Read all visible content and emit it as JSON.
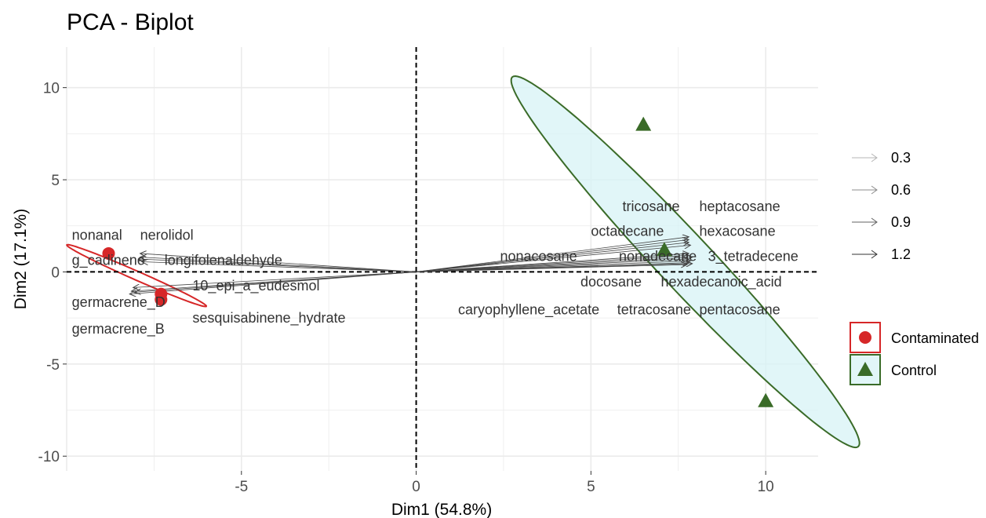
{
  "chart_data": {
    "type": "scatter",
    "title": "PCA - Biplot",
    "xlabel": "Dim1 (54.8%)",
    "ylabel": "Dim2 (17.1%)",
    "xlim": [
      -10,
      11.5
    ],
    "ylim": [
      -10.8,
      12.2
    ],
    "x_ticks": [
      -5,
      0,
      5,
      10
    ],
    "y_ticks": [
      -10,
      -5,
      0,
      5,
      10
    ],
    "grid": true,
    "reference_lines": {
      "x": 0,
      "y": 0,
      "style": "dashed"
    },
    "groups": [
      {
        "name": "Contaminated",
        "color": "#d62728",
        "fill": "#ffffff",
        "shape": "circle",
        "points": [
          [
            -8.8,
            1.0
          ],
          [
            -7.3,
            -1.2
          ],
          [
            -7.3,
            -1.5
          ]
        ],
        "ellipse": {
          "center": [
            -8.0,
            -0.2
          ],
          "semi_major": 2.6,
          "semi_minor": 0.2,
          "angle_deg": -40
        }
      },
      {
        "name": "Control",
        "color": "#3a6b28",
        "fill": "#d7f3f5",
        "shape": "triangle",
        "points": [
          [
            6.5,
            8.0
          ],
          [
            10.0,
            -7.0
          ],
          [
            7.1,
            1.2
          ]
        ],
        "ellipse": {
          "center": [
            7.7,
            0.55
          ],
          "semi_major": 11.2,
          "semi_minor": 0.95,
          "angle_deg": -64
        }
      }
    ],
    "variables": [
      {
        "name": "nonanal",
        "end": [
          -7.9,
          1.0
        ],
        "label_pos": [
          -9.85,
          1.75
        ]
      },
      {
        "name": "nerolidol",
        "end": [
          -7.9,
          0.8
        ],
        "label_pos": [
          -7.9,
          1.75
        ]
      },
      {
        "name": "g_cadinene",
        "end": [
          -7.95,
          0.7
        ],
        "label_pos": [
          -9.85,
          0.38
        ]
      },
      {
        "name": "longifolenaldehyde",
        "end": [
          -7.85,
          0.55
        ],
        "label_pos": [
          -7.2,
          0.38
        ]
      },
      {
        "name": "10_epi_a_eudesmol",
        "end": [
          -8.1,
          -0.85
        ],
        "label_pos": [
          -6.4,
          -1.0
        ]
      },
      {
        "name": "germacrene_D",
        "end": [
          -8.15,
          -1.05
        ],
        "label_pos": [
          -9.85,
          -1.9
        ]
      },
      {
        "name": "germacrene_B",
        "end": [
          -8.05,
          -1.1
        ],
        "label_pos": [
          -9.85,
          -3.35
        ]
      },
      {
        "name": "sesquisabinene_hydrate",
        "end": [
          -8.2,
          -1.2
        ],
        "label_pos": [
          -6.4,
          -2.75
        ]
      },
      {
        "name": "tricosane",
        "end": [
          7.8,
          1.9
        ],
        "label_pos": [
          5.9,
          3.3
        ]
      },
      {
        "name": "heptacosane",
        "end": [
          7.8,
          1.75
        ],
        "label_pos": [
          8.1,
          3.3
        ]
      },
      {
        "name": "octadecane",
        "end": [
          7.8,
          1.6
        ],
        "label_pos": [
          5.0,
          1.95
        ]
      },
      {
        "name": "hexacosane",
        "end": [
          7.85,
          1.45
        ],
        "label_pos": [
          8.1,
          1.95
        ]
      },
      {
        "name": "nonacosane",
        "end": [
          7.8,
          1.0
        ],
        "label_pos": [
          2.4,
          0.6
        ]
      },
      {
        "name": "nonadecane",
        "end": [
          7.8,
          0.9
        ],
        "label_pos": [
          5.8,
          0.6
        ]
      },
      {
        "name": "3_tetradecene",
        "end": [
          7.9,
          0.8
        ],
        "label_pos": [
          8.35,
          0.6
        ]
      },
      {
        "name": "docosane",
        "end": [
          7.8,
          0.7
        ],
        "label_pos": [
          4.7,
          -0.8
        ]
      },
      {
        "name": "hexadecanoic_acid",
        "end": [
          7.85,
          0.6
        ],
        "label_pos": [
          7.0,
          -0.8
        ]
      },
      {
        "name": "caryophyllene_acetate",
        "end": [
          7.8,
          0.5
        ],
        "label_pos": [
          1.2,
          -2.3
        ]
      },
      {
        "name": "tetracosane",
        "end": [
          7.75,
          0.4
        ],
        "label_pos": [
          5.75,
          -2.3
        ]
      },
      {
        "name": "pentacosane",
        "end": [
          7.9,
          0.45
        ],
        "label_pos": [
          8.1,
          -2.3
        ]
      }
    ],
    "legend": {
      "placement": "right",
      "contrib_entries": [
        "0.3",
        "0.6",
        "0.9",
        "1.2"
      ],
      "group_entries": [
        "Contaminated",
        "Control"
      ]
    }
  }
}
